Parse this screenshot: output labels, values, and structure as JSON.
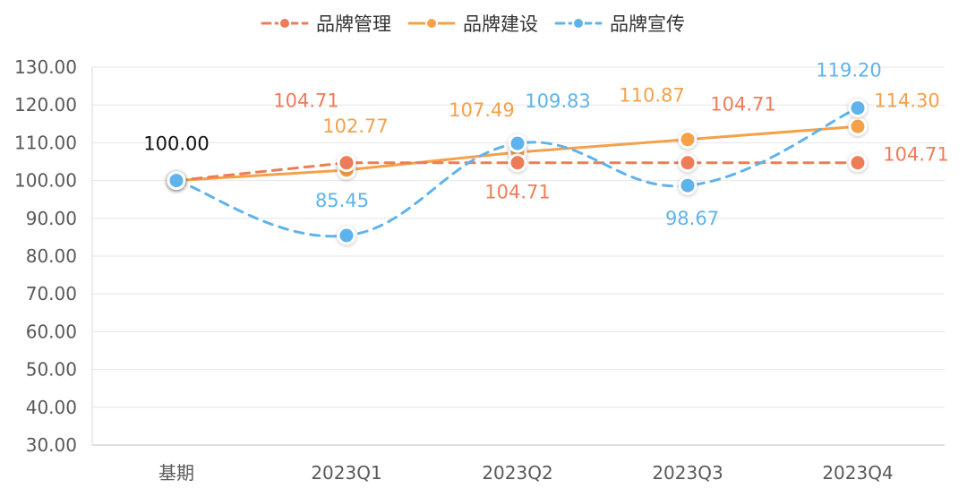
{
  "chart_data": {
    "type": "line",
    "categories": [
      "基期",
      "2023Q1",
      "2023Q2",
      "2023Q3",
      "2023Q4"
    ],
    "ylim": [
      30,
      130
    ],
    "yticks": [
      "30.00",
      "40.00",
      "50.00",
      "60.00",
      "70.00",
      "80.00",
      "90.00",
      "100.00",
      "110.00",
      "120.00",
      "130.00"
    ],
    "grid": true,
    "legend_position": "top-center",
    "series": [
      {
        "name": "品牌管理",
        "color": "#ED7D58",
        "dashed": true,
        "values": [
          100.0,
          104.71,
          104.71,
          104.71,
          104.71
        ],
        "labels": [
          "",
          "104.71",
          "104.71",
          "104.71",
          "104.71"
        ]
      },
      {
        "name": "品牌建设",
        "color": "#F4A14A",
        "dashed": false,
        "values": [
          100.0,
          102.77,
          107.49,
          110.87,
          114.3
        ],
        "labels": [
          "",
          "102.77",
          "107.49",
          "110.87",
          "114.30"
        ]
      },
      {
        "name": "品牌宣传",
        "color": "#5FB3EC",
        "dashed": true,
        "values": [
          100.0,
          85.45,
          109.83,
          98.67,
          119.2
        ],
        "labels": [
          "100.00",
          "85.45",
          "109.83",
          "98.67",
          "119.20"
        ]
      }
    ]
  }
}
